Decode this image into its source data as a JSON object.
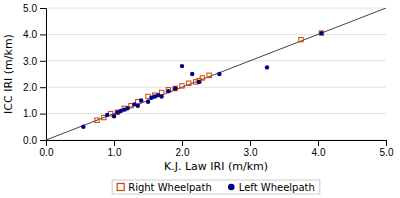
{
  "chart_data": {
    "type": "scatter",
    "xlabel": "K.J. Law IRI (m/km)",
    "ylabel": "ICC IRI (m/km)",
    "series": [
      {
        "type": "line",
        "color": "#444444",
        "x": [
          0.0,
          5.0
        ],
        "values": [
          0.0,
          5.0
        ]
      },
      {
        "name": "Right Wheelpath",
        "color": "#CC4400",
        "marker": "square",
        "x": [
          0.75,
          0.85,
          0.95,
          1.05,
          1.15,
          1.25,
          1.35,
          1.5,
          1.6,
          1.7,
          1.8,
          1.9,
          2.0,
          2.1,
          2.2,
          2.25,
          2.3,
          2.4,
          3.75,
          4.05
        ],
        "values": [
          0.75,
          0.85,
          1.0,
          1.05,
          1.2,
          1.3,
          1.45,
          1.65,
          1.7,
          1.8,
          1.9,
          1.95,
          2.05,
          2.15,
          2.2,
          2.25,
          2.35,
          2.45,
          3.8,
          4.05
        ]
      },
      {
        "name": "Left Wheelpath",
        "color": "#00008B",
        "marker": "circle",
        "x": [
          0.55,
          0.9,
          1.0,
          1.05,
          1.1,
          1.15,
          1.2,
          1.3,
          1.35,
          1.4,
          1.5,
          1.55,
          1.6,
          1.65,
          1.7,
          1.8,
          1.9,
          2.0,
          2.15,
          2.25,
          2.55,
          3.25,
          4.05
        ],
        "values": [
          0.5,
          0.95,
          0.9,
          1.05,
          1.1,
          1.15,
          1.2,
          1.35,
          1.3,
          1.5,
          1.45,
          1.6,
          1.65,
          1.7,
          1.65,
          1.85,
          1.95,
          2.8,
          2.5,
          2.2,
          2.5,
          2.75,
          4.05
        ]
      }
    ],
    "xlim": [
      0.0,
      5.0
    ],
    "ylim": [
      0.0,
      5.0
    ],
    "xticks": [
      {
        "value": 0.0,
        "label": "0.0"
      },
      {
        "value": 1.0,
        "label": "1.0"
      },
      {
        "value": 2.0,
        "label": "2.0"
      },
      {
        "value": 3.0,
        "label": "3.0"
      },
      {
        "value": 4.0,
        "label": "4.0"
      },
      {
        "value": 5.0,
        "label": "5.0"
      }
    ],
    "yticks": [
      {
        "value": 0.0,
        "label": "0.0"
      },
      {
        "value": 1.0,
        "label": "1.0"
      },
      {
        "value": 2.0,
        "label": "2.0"
      },
      {
        "value": 3.0,
        "label": "3.0"
      },
      {
        "value": 4.0,
        "label": "4.0"
      },
      {
        "value": 5.0,
        "label": "5.0"
      }
    ],
    "grid": "y",
    "legend": "bottom"
  }
}
